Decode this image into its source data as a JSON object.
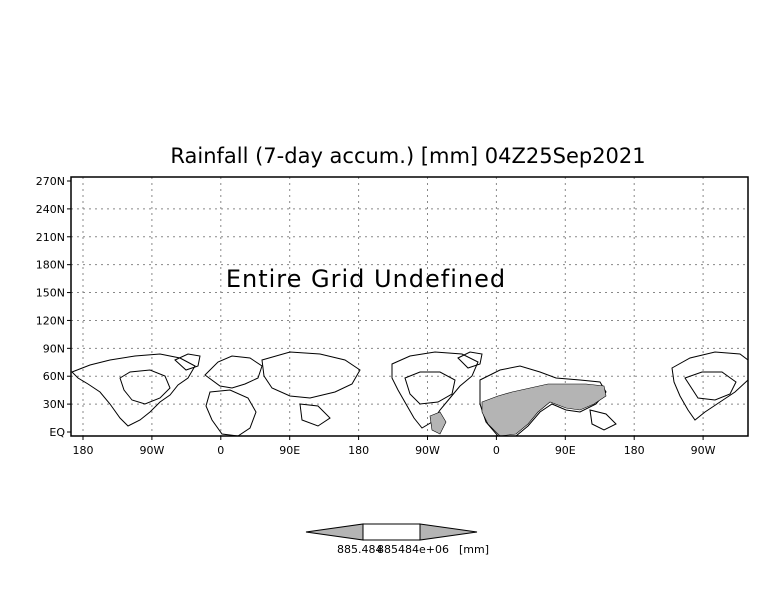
{
  "title": "Rainfall (7-day accum.) [mm] 04Z25Sep2021",
  "message": "Entire Grid Undefined",
  "y_ticks": [
    "270N",
    "240N",
    "210N",
    "180N",
    "150N",
    "120N",
    "90N",
    "60N",
    "30N",
    "EQ"
  ],
  "x_ticks": [
    "180",
    "90W",
    "0",
    "90E",
    "180",
    "90W",
    "0",
    "90E",
    "180",
    "90W"
  ],
  "colorbar": {
    "label_left": "885.484",
    "label_middle": "885484e+06",
    "unit": "[mm]",
    "colors": [
      "#b4b4b4",
      "#ffffff",
      "#b4b4b4"
    ]
  },
  "colors": {
    "land_shade": "#b4b4b4",
    "grid": "#888888",
    "frame": "#000000"
  }
}
